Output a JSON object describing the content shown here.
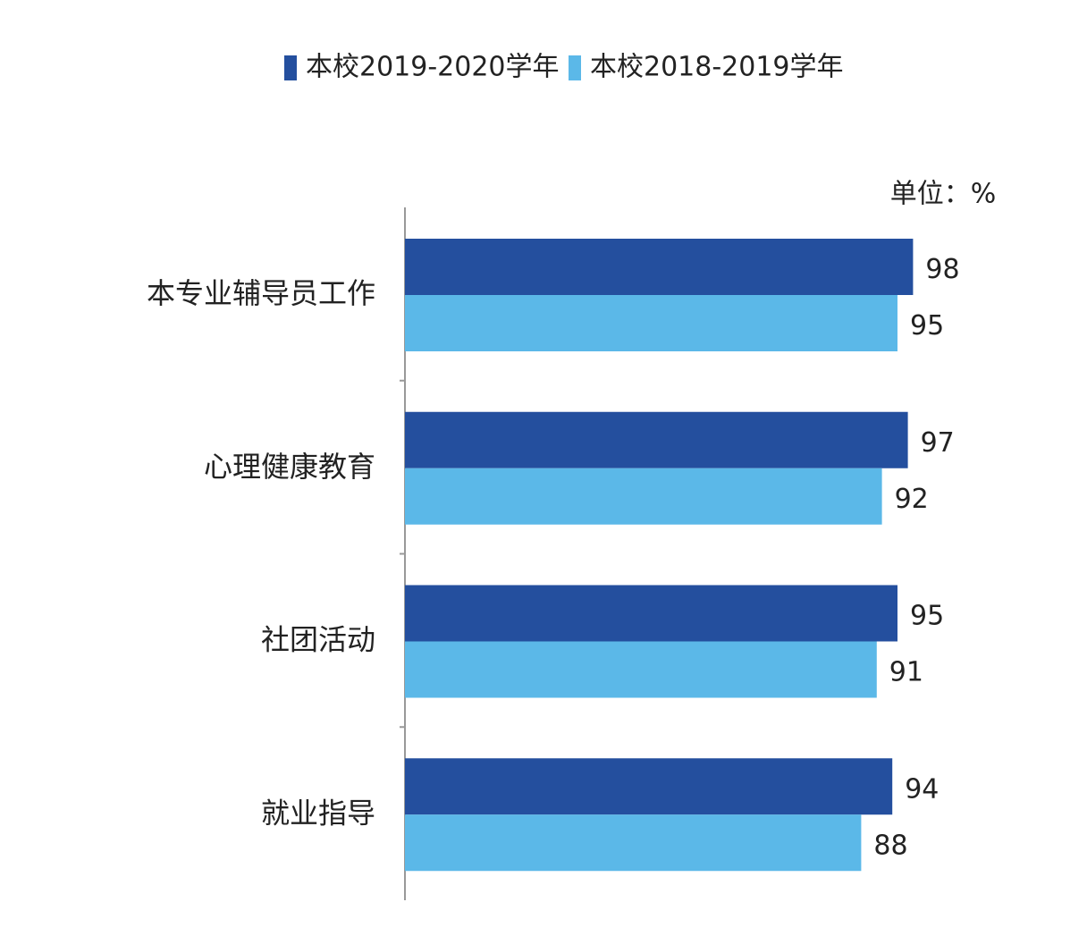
{
  "chart_data": {
    "type": "hbar",
    "unit_label": "单位：%",
    "categories": [
      "本专业辅导员工作",
      "心理健康教育",
      "社团活动",
      "就业指导"
    ],
    "series": [
      {
        "name": "本校2019-2020学年",
        "color": "#244f9e",
        "values": [
          98,
          97,
          95,
          94
        ]
      },
      {
        "name": "本校2018-2019学年",
        "color": "#5bb8e8",
        "values": [
          95,
          92,
          91,
          88
        ]
      }
    ],
    "xlim": [
      0,
      100
    ],
    "legend": "top"
  }
}
